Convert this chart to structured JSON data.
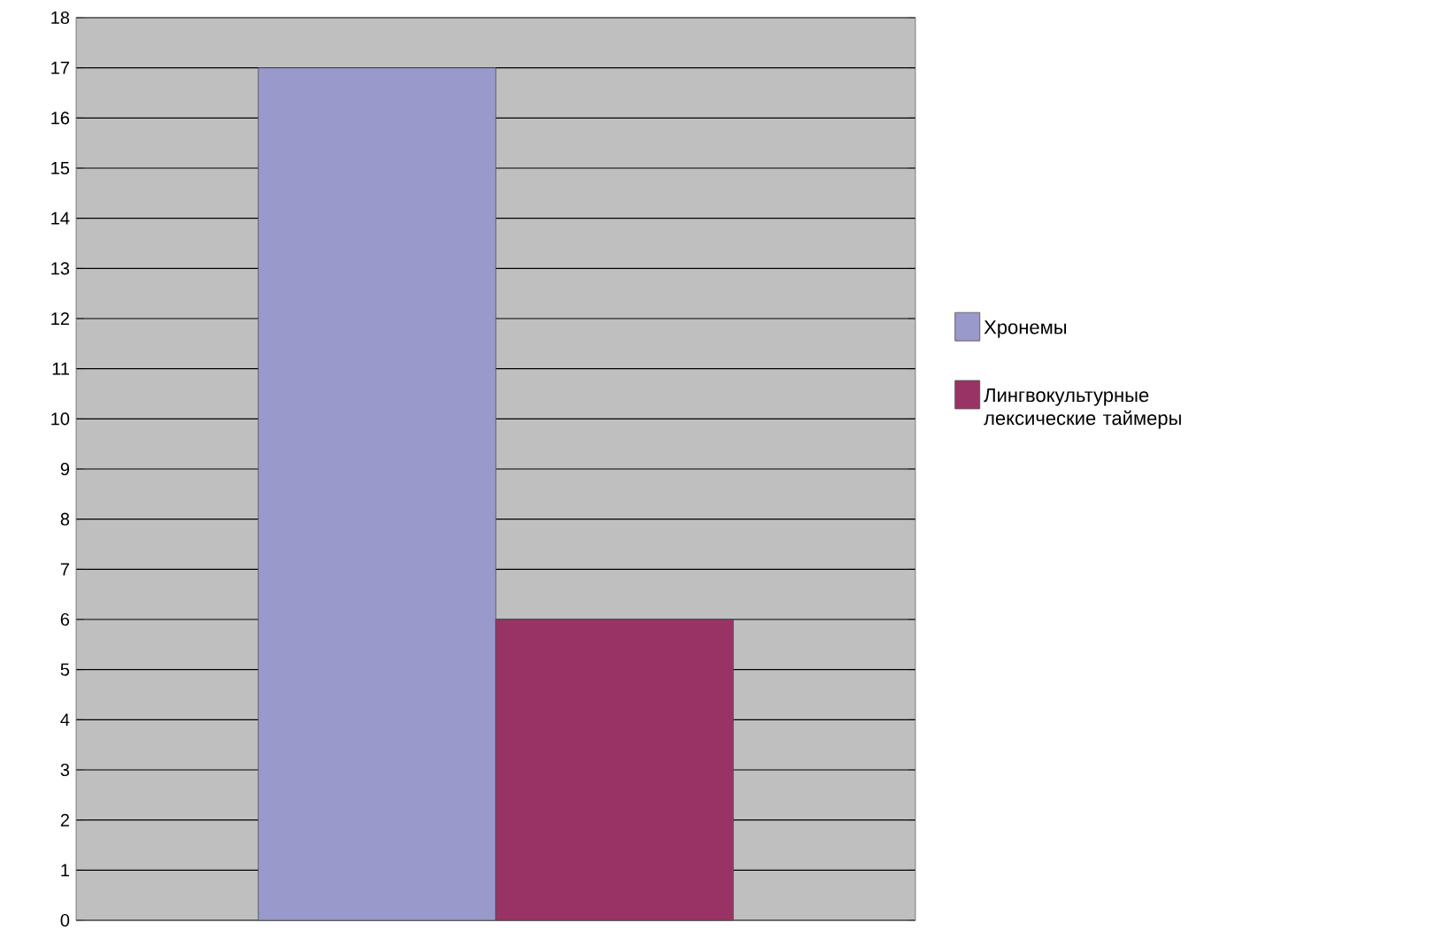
{
  "chart_data": {
    "type": "bar",
    "categories": [
      null
    ],
    "series": [
      {
        "name": "Хронемы",
        "color": "#9999cc",
        "values": [
          17
        ]
      },
      {
        "name": "Лингвокультурные лексические таймеры",
        "color": "#993366",
        "values": [
          6
        ]
      }
    ],
    "ylim": [
      0,
      18
    ],
    "yticks": [
      0,
      1,
      2,
      3,
      4,
      5,
      6,
      7,
      8,
      9,
      10,
      11,
      12,
      13,
      14,
      15,
      16,
      17,
      18
    ],
    "grid": "y",
    "legend": "right"
  }
}
